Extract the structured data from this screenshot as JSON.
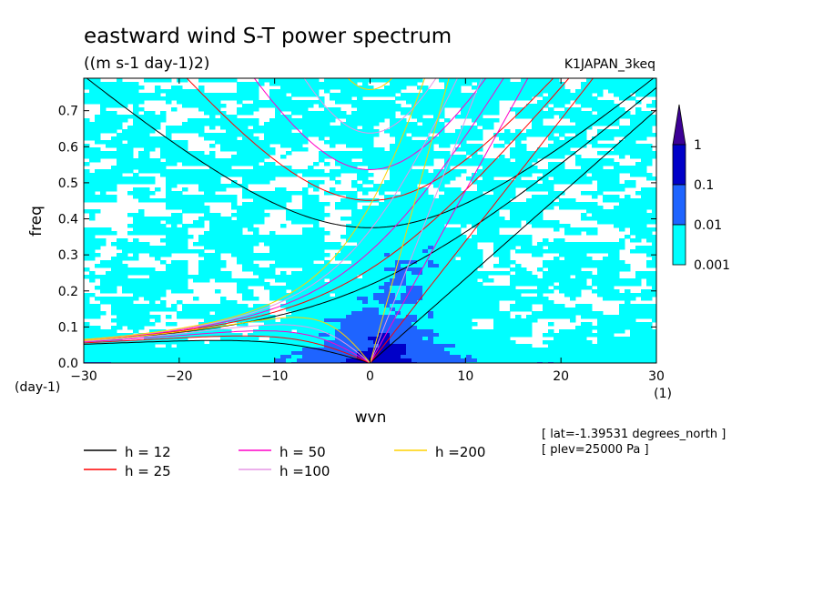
{
  "chart_data": {
    "type": "heatmap",
    "title": "eastward wind S-T power spectrum",
    "subtitle": "((m s-1 day-1)2)",
    "run_label": "K1JAPAN_3keq",
    "xlabel": "wvn",
    "ylabel": "freq",
    "x_unit_label": "(1)",
    "y_unit_label": "(day-1)",
    "xlim": [
      -30,
      30
    ],
    "ylim": [
      0,
      0.79
    ],
    "x_ticks": [
      "-30",
      "-20",
      "-10",
      "0",
      "10",
      "20",
      "30"
    ],
    "y_ticks": [
      "0.0",
      "0.1",
      "0.2",
      "0.3",
      "0.4",
      "0.5",
      "0.6",
      "0.7"
    ],
    "colorbar": {
      "levels": [
        "0.001",
        "0.01",
        "0.1",
        "1"
      ],
      "colors": [
        "#00ffff",
        "#1e64ff",
        "#0000c8",
        "#3c0096"
      ]
    },
    "info": [
      "[ lat=-1.39531 degrees_north ]",
      "[ plev=25000 Pa ]"
    ],
    "legend": [
      {
        "label": "h = 12",
        "color": "#000000",
        "h": 12
      },
      {
        "label": "h = 25",
        "color": "#ff0000",
        "h": 25
      },
      {
        "label": "h = 50",
        "color": "#ff00c8",
        "h": 50
      },
      {
        "label": "h =100",
        "color": "#e696e6",
        "h": 100
      },
      {
        "label": "h =200",
        "color": "#ffd200",
        "h": 200
      }
    ]
  }
}
